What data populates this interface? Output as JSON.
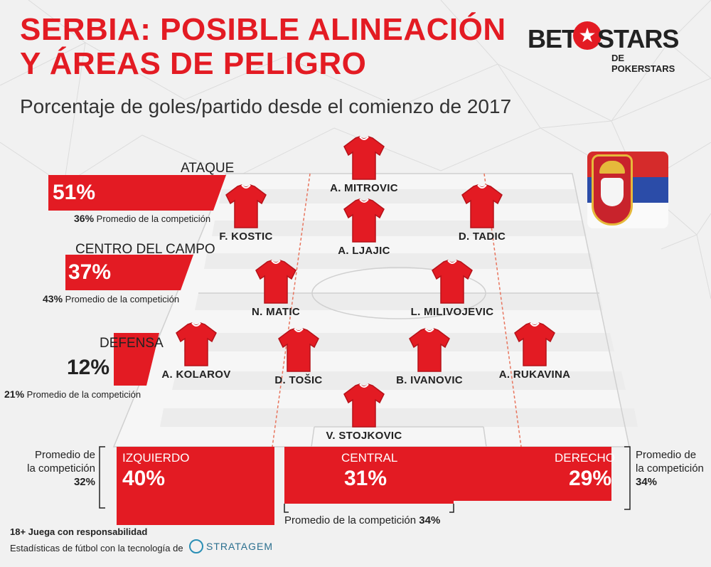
{
  "title": {
    "line1": "SERBIA: POSIBLE ALINEACIÓN",
    "line2": "Y ÁREAS DE PELIGRO"
  },
  "subtitle": "Porcentaje de goles/partido desde el comienzo de 2017",
  "brand": {
    "bet": "BET",
    "stars": "STARS",
    "sub": "DE POKERSTARS",
    "star_glyph": "★",
    "red": "#e31b23"
  },
  "zones_vertical": {
    "attack": {
      "label": "ATAQUE",
      "pct": "51%",
      "avg_pct": "36%",
      "avg_label": "Promedio de la competición"
    },
    "midfield": {
      "label": "CENTRO DEL CAMPO",
      "pct": "37%",
      "avg_pct": "43%",
      "avg_label": "Promedio de la competición"
    },
    "defense": {
      "label": "DEFENSA",
      "pct": "12%",
      "avg_pct": "21%",
      "avg_label": "Promedio de la competición"
    }
  },
  "players": [
    {
      "name": "A. MITROVIC"
    },
    {
      "name": "F. KOSTIC"
    },
    {
      "name": "D. TADIC"
    },
    {
      "name": "A. LJAJIC"
    },
    {
      "name": "N. MATIC"
    },
    {
      "name": "L. MILIVOJEVIC"
    },
    {
      "name": "A. KOLAROV"
    },
    {
      "name": "D. TOŠIC"
    },
    {
      "name": "B. IVANOVIC"
    },
    {
      "name": "A. RUKAVINA"
    },
    {
      "name": "V. STOJKOVIC"
    }
  ],
  "zones_horizontal": {
    "left": {
      "label": "IZQUIERDO",
      "pct": "40%",
      "avg_label": "Promedio de la competición",
      "avg_pct": "32%"
    },
    "center": {
      "label": "CENTRAL",
      "pct": "31%",
      "avg_label": "Promedio de la competición",
      "avg_pct": "34%"
    },
    "right": {
      "label": "DERECHO",
      "pct": "29%",
      "avg_label": "Promedio de la competición",
      "avg_pct": "34%"
    }
  },
  "footer": {
    "responsible": "18+ Juega con responsabilidad",
    "stats": "Estadísticas de fútbol con la tecnología de",
    "provider": "STRATAGEM"
  }
}
